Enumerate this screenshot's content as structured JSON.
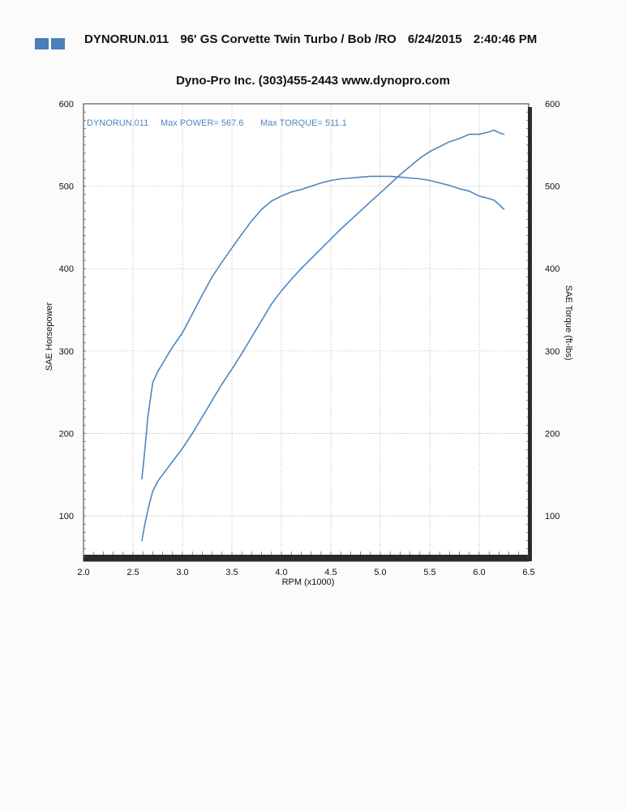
{
  "header": {
    "run_id": "DYNORUN.011",
    "vehicle": "96' GS Corvette Twin Turbo / Bob /RO",
    "date": "6/24/2015",
    "time": "2:40:46 PM"
  },
  "company_line": "Dyno-Pro Inc.  (303)455-2443  www.dynopro.com",
  "colors": {
    "curve": "#4f86c0",
    "accent": "#4a7fb8"
  },
  "chart_data": {
    "type": "line",
    "legend": {
      "run": "DYNORUN.011",
      "power_text": "Max POWER= 567.6",
      "torque_text": "Max TORQUE= 511.1",
      "placement": "top-left"
    },
    "xlabel": "RPM (x1000)",
    "ylabel_left": "SAE Horsepower",
    "ylabel_right": "SAE Torque (ft-lbs)",
    "xlim": [
      2.0,
      6.5
    ],
    "ylim": [
      45,
      600
    ],
    "x_ticks": [
      "2.0",
      "2.5",
      "3.0",
      "3.5",
      "4.0",
      "4.5",
      "5.0",
      "5.5",
      "6.0",
      "6.5"
    ],
    "y_ticks_left": [
      "100",
      "200",
      "300",
      "400",
      "500",
      "600"
    ],
    "y_ticks_right": [
      "100",
      "200",
      "300",
      "400",
      "500",
      "600"
    ],
    "grid": true,
    "series": [
      {
        "axis": "right",
        "x": [
          2.59,
          2.62,
          2.65,
          2.7,
          2.75,
          2.8,
          2.9,
          3.0,
          3.1,
          3.2,
          3.3,
          3.4,
          3.5,
          3.6,
          3.7,
          3.8,
          3.9,
          4.0,
          4.1,
          4.2,
          4.3,
          4.4,
          4.5,
          4.6,
          4.7,
          4.8,
          4.9,
          5.0,
          5.1,
          5.2,
          5.3,
          5.4,
          5.5,
          5.6,
          5.7,
          5.8,
          5.9,
          6.0,
          6.1,
          6.15,
          6.2,
          6.25
        ],
        "values": [
          145,
          180,
          220,
          262,
          275,
          285,
          305,
          322,
          345,
          368,
          390,
          408,
          425,
          442,
          458,
          472,
          482,
          488,
          493,
          496,
          500,
          504,
          507,
          509,
          510,
          511,
          512,
          512,
          512,
          511,
          510,
          509,
          507,
          504,
          501,
          497,
          494,
          488,
          485,
          483,
          478,
          472
        ]
      },
      {
        "axis": "left",
        "x": [
          2.59,
          2.62,
          2.66,
          2.7,
          2.75,
          2.8,
          2.9,
          3.0,
          3.1,
          3.2,
          3.3,
          3.4,
          3.5,
          3.6,
          3.7,
          3.8,
          3.9,
          4.0,
          4.1,
          4.2,
          4.3,
          4.4,
          4.5,
          4.6,
          4.7,
          4.8,
          4.9,
          5.0,
          5.1,
          5.2,
          5.3,
          5.4,
          5.5,
          5.6,
          5.7,
          5.8,
          5.9,
          6.0,
          6.1,
          6.15,
          6.2,
          6.25
        ],
        "values": [
          70,
          90,
          112,
          130,
          142,
          150,
          166,
          182,
          200,
          220,
          240,
          260,
          278,
          297,
          317,
          337,
          357,
          373,
          387,
          400,
          412,
          424,
          436,
          448,
          459,
          470,
          481,
          492,
          503,
          514,
          524,
          534,
          542,
          548,
          554,
          558,
          563,
          563,
          566,
          568,
          565,
          563
        ]
      }
    ]
  }
}
